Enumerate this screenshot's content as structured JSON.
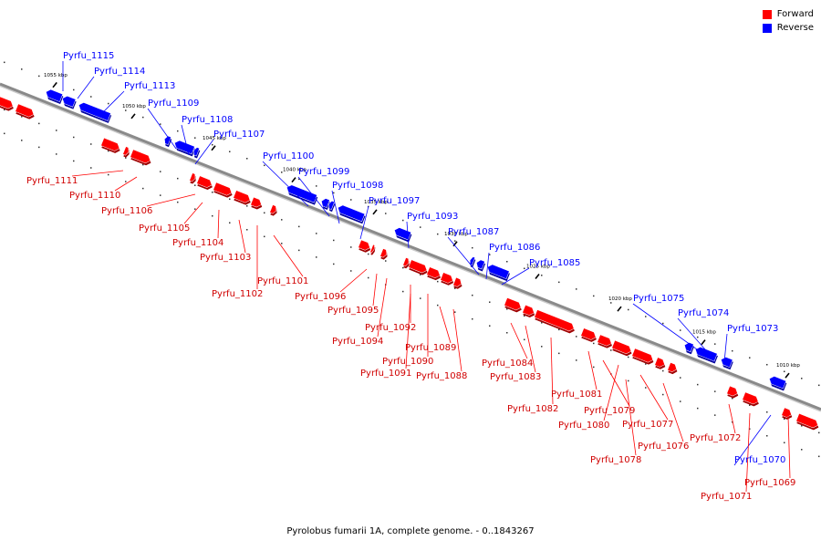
{
  "caption": "Pyrolobus fumarii 1A, complete genome. - 0..1843267",
  "legend": {
    "forward_label": "Forward",
    "reverse_label": "Reverse",
    "forward_color": "#ff0000",
    "reverse_color": "#0000ff"
  },
  "scale_labels": [
    "1055 kbp",
    "1050 kbp",
    "1045 kbp",
    "1040 kbp",
    "1035 kbp",
    "1030 kbp",
    "1025 kbp",
    "1020 kbp",
    "1015 kbp",
    "1010 kbp"
  ],
  "genes_forward": [
    "Pyrfu_1111",
    "Pyrfu_1110",
    "Pyrfu_1106",
    "Pyrfu_1105",
    "Pyrfu_1104",
    "Pyrfu_1103",
    "Pyrfu_1102",
    "Pyrfu_1101",
    "Pyrfu_1096",
    "Pyrfu_1095",
    "Pyrfu_1094",
    "Pyrfu_1092",
    "Pyrfu_1090",
    "Pyrfu_1091",
    "Pyrfu_1089",
    "Pyrfu_1088",
    "Pyrfu_1084",
    "Pyrfu_1083",
    "Pyrfu_1082",
    "Pyrfu_1081",
    "Pyrfu_1079",
    "Pyrfu_1080",
    "Pyrfu_1077",
    "Pyrfu_1078",
    "Pyrfu_1076",
    "Pyrfu_1072",
    "Pyrfu_1071",
    "Pyrfu_1069"
  ],
  "genes_reverse": [
    "Pyrfu_1115",
    "Pyrfu_1114",
    "Pyrfu_1113",
    "Pyrfu_1109",
    "Pyrfu_1108",
    "Pyrfu_1107",
    "Pyrfu_1100",
    "Pyrfu_1099",
    "Pyrfu_1098",
    "Pyrfu_1097",
    "Pyrfu_1093",
    "Pyrfu_1087",
    "Pyrfu_1086",
    "Pyrfu_1085",
    "Pyrfu_1075",
    "Pyrfu_1074",
    "Pyrfu_1073",
    "Pyrfu_1070"
  ]
}
